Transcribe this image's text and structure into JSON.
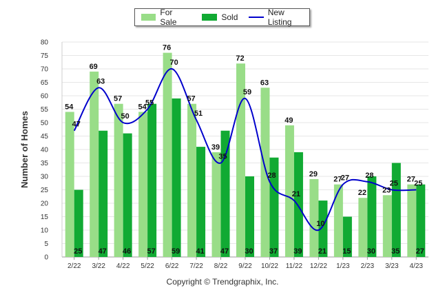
{
  "legend": {
    "for_sale": "For Sale",
    "sold": "Sold",
    "new_listing": "New Listing"
  },
  "copyright": "Copyright © Trendgraphix, Inc.",
  "colors": {
    "for_sale": "#99dd88",
    "sold": "#11aa33",
    "new_listing": "#0000cc"
  },
  "chart_data": {
    "type": "bar",
    "categories": [
      "2/22",
      "3/22",
      "4/22",
      "5/22",
      "6/22",
      "7/22",
      "8/22",
      "9/22",
      "10/22",
      "11/22",
      "12/22",
      "1/23",
      "2/23",
      "3/23",
      "4/23"
    ],
    "series": [
      {
        "name": "For Sale",
        "type": "bar",
        "values": [
          54,
          69,
          57,
          54,
          76,
          57,
          39,
          72,
          63,
          49,
          29,
          27,
          22,
          23,
          27
        ]
      },
      {
        "name": "Sold",
        "type": "bar",
        "values": [
          25,
          47,
          46,
          57,
          59,
          41,
          47,
          30,
          37,
          39,
          21,
          15,
          30,
          35,
          27
        ]
      },
      {
        "name": "New Listing",
        "type": "line",
        "values": [
          47,
          63,
          50,
          55,
          70,
          51,
          35,
          59,
          28,
          21,
          10,
          27,
          28,
          25,
          25
        ]
      }
    ],
    "ylabel": "Number of Homes",
    "xlabel": "",
    "ylim": [
      0,
      80
    ],
    "yticks": [
      0,
      5,
      10,
      15,
      20,
      25,
      30,
      35,
      40,
      45,
      50,
      55,
      60,
      65,
      70,
      75,
      80
    ],
    "grid": true,
    "legend_position": "top-center"
  }
}
